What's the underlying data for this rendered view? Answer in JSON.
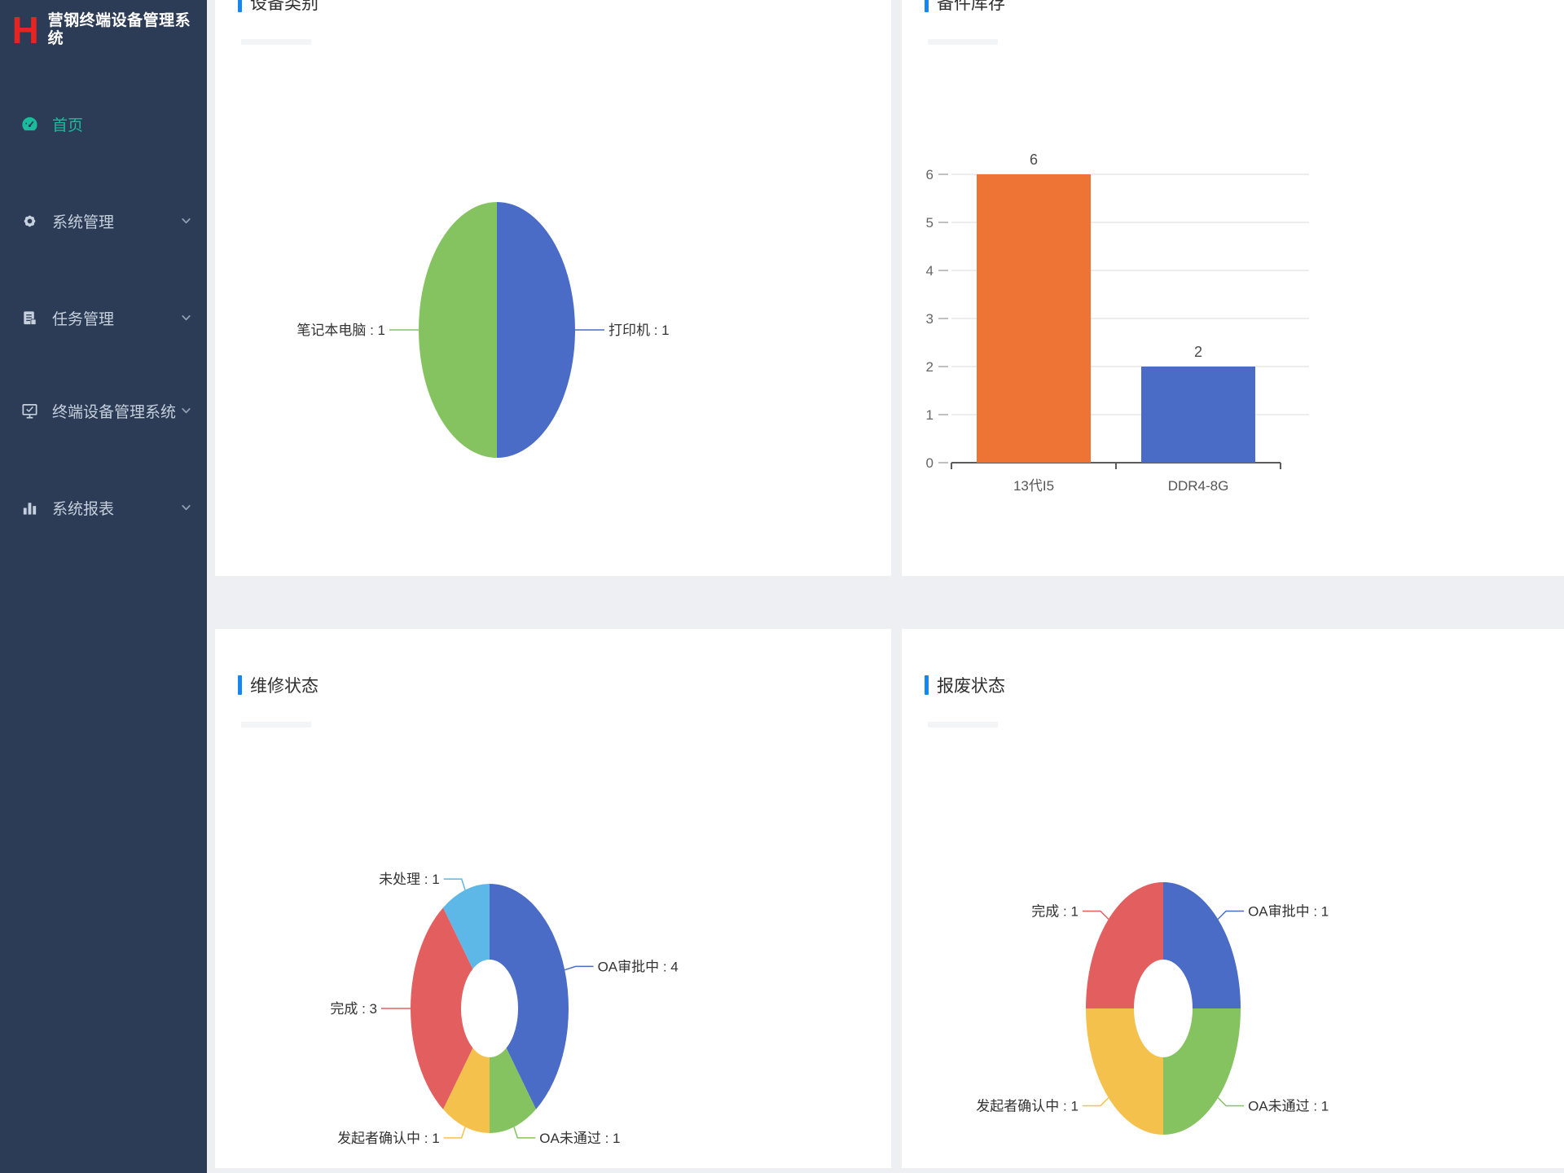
{
  "app": {
    "logo_letter": "H",
    "title": "营钢终端设备管理系统"
  },
  "sidebar": {
    "items": [
      {
        "key": "home",
        "label": "首页",
        "icon": "dashboard-icon",
        "active": true,
        "has_submenu": false
      },
      {
        "key": "system",
        "label": "系统管理",
        "icon": "gear-icon",
        "active": false,
        "has_submenu": true
      },
      {
        "key": "tasks",
        "label": "任务管理",
        "icon": "tasks-icon",
        "active": false,
        "has_submenu": true
      },
      {
        "key": "devices",
        "label": "终端设备管理系统",
        "icon": "device-icon",
        "active": false,
        "has_submenu": true
      },
      {
        "key": "reports",
        "label": "系统报表",
        "icon": "report-icon",
        "active": false,
        "has_submenu": true
      }
    ]
  },
  "panels": [
    {
      "title": "设备类别"
    },
    {
      "title": "备件库存"
    },
    {
      "title": "维修状态"
    },
    {
      "title": "报废状态"
    }
  ],
  "colors": {
    "sidebar_bg": "#2c3c56",
    "active_menu": "#1abc9c",
    "logo_red": "#e42521",
    "title_marker_blue": "#1687f0",
    "page_bg": "#edeff2",
    "slice_blue": "#4a6cc6",
    "slice_green": "#85c361",
    "slice_red": "#e35f5f",
    "slice_yellow": "#f5c14d",
    "slice_cyan": "#5db8e8",
    "bar_orange": "#ee7435",
    "bar_blue": "#4a6cc6"
  },
  "chart_data": [
    {
      "type": "pie",
      "title": "设备类别",
      "legend_position": "none",
      "label_format": "name : value",
      "series": [
        {
          "name": "打印机",
          "value": 1,
          "color": "#4a6cc6"
        },
        {
          "name": "笔记本电脑",
          "value": 1,
          "color": "#85c361"
        }
      ]
    },
    {
      "type": "bar",
      "title": "备件库存",
      "categories": [
        "13代I5",
        "DDR4-8G"
      ],
      "values": [
        6,
        2
      ],
      "bar_colors": [
        "#ee7435",
        "#4a6cc6"
      ],
      "data_labels": [
        "6",
        "2"
      ],
      "ylim": [
        0,
        6
      ],
      "yticks": [
        0,
        1,
        2,
        3,
        4,
        5,
        6
      ],
      "grid": true,
      "xlabel": "",
      "ylabel": ""
    },
    {
      "type": "donut",
      "title": "维修状态",
      "legend_position": "none",
      "label_format": "name : value",
      "series": [
        {
          "name": "OA审批中",
          "value": 4,
          "color": "#4a6cc6"
        },
        {
          "name": "OA未通过",
          "value": 1,
          "color": "#85c361"
        },
        {
          "name": "发起者确认中",
          "value": 1,
          "color": "#f5c14d"
        },
        {
          "name": "完成",
          "value": 3,
          "color": "#e35f5f"
        },
        {
          "name": "未处理",
          "value": 1,
          "color": "#5db8e8"
        }
      ]
    },
    {
      "type": "donut",
      "title": "报废状态",
      "legend_position": "none",
      "label_format": "name : value",
      "series": [
        {
          "name": "OA审批中",
          "value": 1,
          "color": "#4a6cc6"
        },
        {
          "name": "OA未通过",
          "value": 1,
          "color": "#85c361"
        },
        {
          "name": "发起者确认中",
          "value": 1,
          "color": "#f5c14d"
        },
        {
          "name": "完成",
          "value": 1,
          "color": "#e35f5f"
        }
      ]
    }
  ]
}
